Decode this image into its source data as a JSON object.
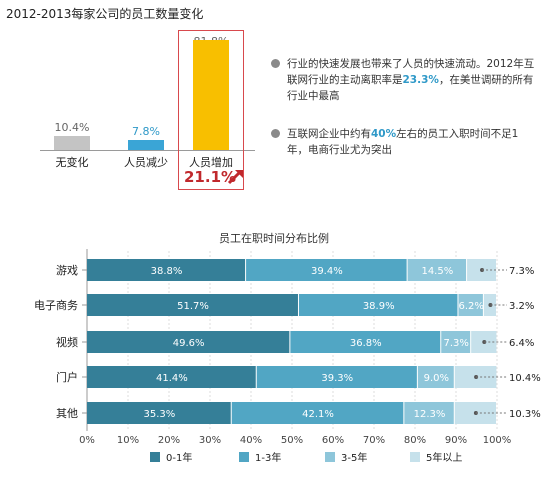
{
  "top_chart": {
    "title": "2012-2013每家公司的员工数量变化",
    "bars": [
      {
        "label": "无变化",
        "value_text": "10.4%",
        "value": 10.4,
        "color": "#c4c4c4"
      },
      {
        "label": "人员减少",
        "value_text": "7.8%",
        "value": 7.8,
        "color": "#3aa5d6"
      },
      {
        "label": "人员增加",
        "value_text": "81.8%",
        "value": 81.8,
        "color": "#f8bf00"
      }
    ],
    "growth_label": "21.1%",
    "highlight_color": "#d8494d",
    "arrow_icon": "trend-up-arrow-icon"
  },
  "notes": [
    {
      "parts": [
        "行业的快速发展也带来了人员的快速流动。2012年互联网行业的主动离职率是",
        "23.3%",
        "，在美世调研的所有行业中最高"
      ]
    },
    {
      "parts": [
        "互联网企业中约有",
        "40%",
        "左右的员工入职时间不足1年，电商行业尤为突出"
      ]
    }
  ],
  "chart_data": {
    "type": "bar",
    "orientation": "horizontal",
    "stacked": true,
    "title": "员工在职时间分布比例",
    "categories": [
      "游戏",
      "电子商务",
      "视频",
      "门户",
      "其他"
    ],
    "series": [
      {
        "name": "0-1年",
        "color": "#357f98",
        "values": [
          38.8,
          51.7,
          49.6,
          41.4,
          35.3
        ]
      },
      {
        "name": "1-3年",
        "color": "#51a6c4",
        "values": [
          39.4,
          38.9,
          36.8,
          39.3,
          42.1
        ]
      },
      {
        "name": "3-5年",
        "color": "#8ec6da",
        "values": [
          14.5,
          6.2,
          7.3,
          9.0,
          12.3
        ]
      },
      {
        "name": "5年以上",
        "color": "#c6e1eb",
        "values": [
          7.3,
          3.2,
          6.4,
          10.4,
          10.3
        ]
      }
    ],
    "value_labels": [
      [
        "38.8%",
        "39.4%",
        "14.5%",
        "7.3%"
      ],
      [
        "51.7%",
        "38.9%",
        "6.2%",
        "3.2%"
      ],
      [
        "49.6%",
        "36.8%",
        "7.3%",
        "6.4%"
      ],
      [
        "41.4%",
        "39.3%",
        "9.0%",
        "10.4%"
      ],
      [
        "35.3%",
        "42.1%",
        "12.3%",
        "10.3%"
      ]
    ],
    "xlim": [
      0,
      100
    ],
    "x_ticks": [
      "0%",
      "10%",
      "20%",
      "30%",
      "40%",
      "50%",
      "60%",
      "70%",
      "80%",
      "90%",
      "100%"
    ],
    "grid": true,
    "legend_position": "bottom"
  }
}
